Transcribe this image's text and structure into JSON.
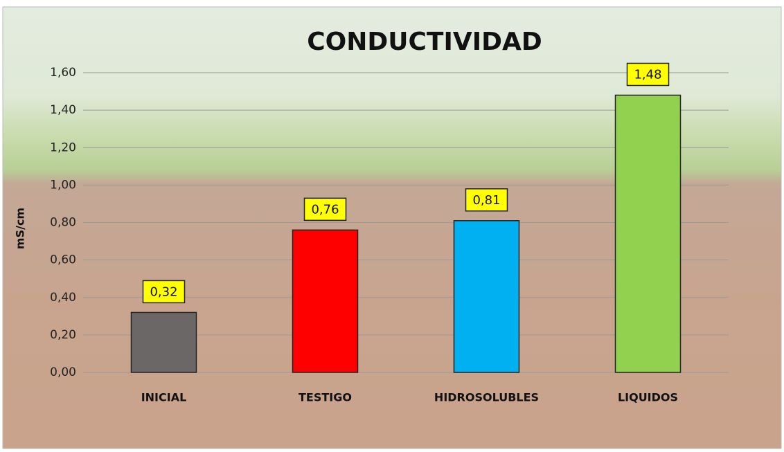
{
  "chart_data": {
    "type": "bar",
    "title": "CONDUCTIVIDAD",
    "y_label": "mS/cm",
    "categories": [
      "INICIAL",
      "TESTIGO",
      "HIDROSOLUBLES",
      "LIQUIDOS"
    ],
    "values": [
      0.32,
      0.76,
      0.81,
      1.48
    ],
    "value_labels": [
      "0,32",
      "0,76",
      "0,81",
      "1,48"
    ],
    "colors": [
      "#6b6767",
      "#ff0000",
      "#00b0f0",
      "#92d050"
    ],
    "ylim": [
      0,
      1.6
    ],
    "yticks": [
      {
        "value": 0,
        "label": "0,00"
      },
      {
        "value": 0.2,
        "label": "0,20"
      },
      {
        "value": 0.4,
        "label": "0,40"
      },
      {
        "value": 0.6,
        "label": "0,60"
      },
      {
        "value": 0.8,
        "label": "0,80"
      },
      {
        "value": 1.0,
        "label": "1,00"
      },
      {
        "value": 1.2,
        "label": "1,20"
      },
      {
        "value": 1.4,
        "label": "1,40"
      },
      {
        "value": 1.6,
        "label": "1,60"
      }
    ],
    "grid": true
  }
}
